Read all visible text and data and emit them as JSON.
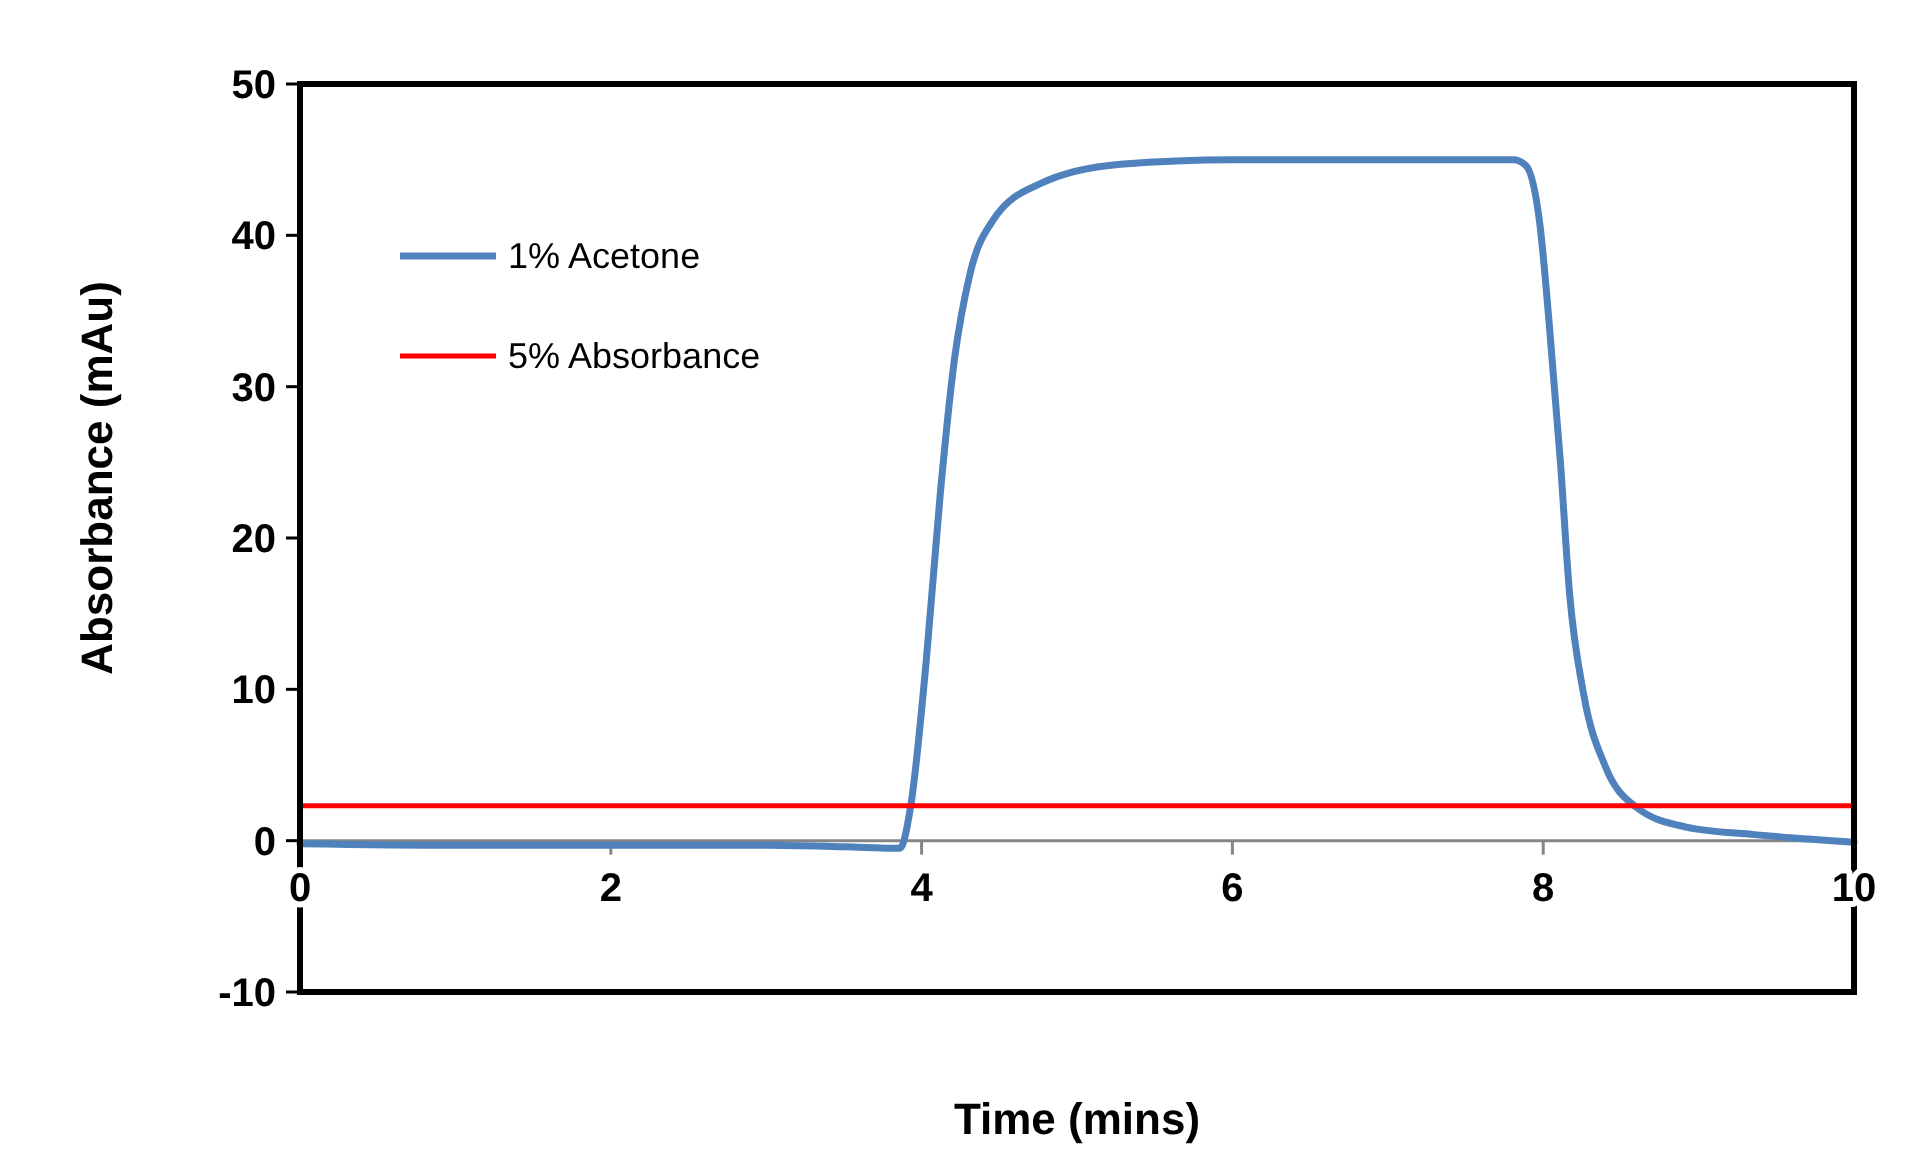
{
  "chart_data": {
    "type": "line",
    "xlabel": "Time (mins)",
    "ylabel": "Absorbance (mAu)",
    "xlim": [
      0,
      10
    ],
    "xticks": [
      0,
      2,
      4,
      6,
      8,
      10
    ],
    "ylim": [
      -10,
      50
    ],
    "yticks": [
      -10,
      0,
      10,
      20,
      30,
      40,
      50
    ],
    "grid": false,
    "legend": "top left",
    "marker": "none",
    "line_style": "solid",
    "series": [
      {
        "name": "1% Acetone",
        "color": "#4f81bd",
        "x": [
          0,
          1,
          2,
          3,
          3.5,
          3.86,
          3.93,
          4.03,
          4.12,
          4.21,
          4.31,
          4.46,
          4.76,
          5.28,
          6,
          7,
          7.81,
          7.89,
          7.98,
          8.04,
          8.11,
          8.17,
          8.26,
          8.4,
          8.6,
          8.92,
          9.36,
          10
        ],
        "values": [
          -0.2,
          -0.3,
          -0.3,
          -0.3,
          -0.4,
          -0.5,
          2.3,
          11.9,
          22.9,
          31.7,
          37.4,
          41,
          43.4,
          44.7,
          45,
          45,
          45,
          44.6,
          40.6,
          34,
          25.1,
          16.3,
          9.7,
          4.9,
          2.2,
          0.9,
          0.4,
          -0.1
        ]
      },
      {
        "name": "5% Absorbance",
        "color": "#ff0000",
        "x": [
          0,
          10
        ],
        "values": [
          2.3,
          2.3
        ]
      }
    ]
  }
}
